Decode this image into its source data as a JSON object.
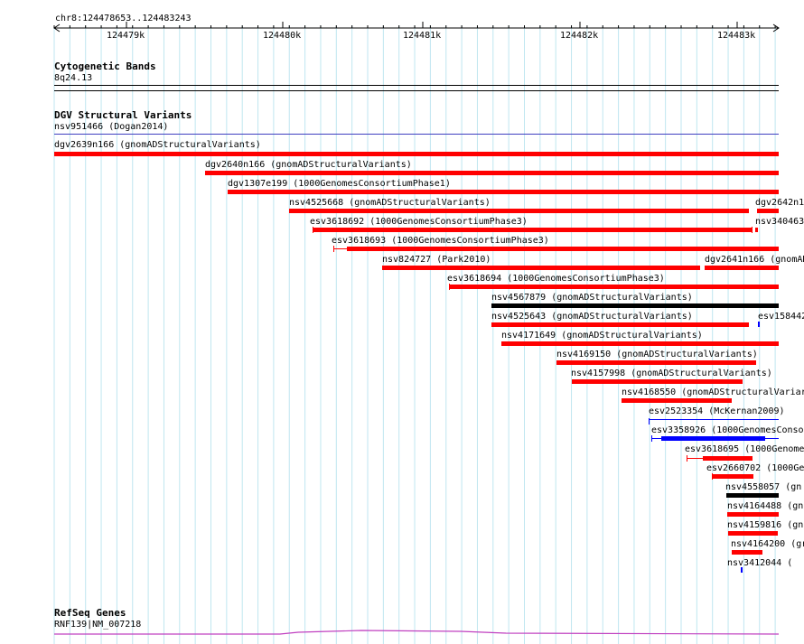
{
  "ruler": {
    "location": "chr8:124478653..124483243",
    "ticks": [
      "124479k",
      "124480k",
      "124481k",
      "124482k",
      "124483k"
    ]
  },
  "cytoband": {
    "title": "Cytogenetic Bands",
    "band": "8q24.13"
  },
  "dgv": {
    "title": "DGV Structural Variants",
    "first": "nsv951466 (Dogan2014)",
    "features": [
      {
        "label": "dgv2639n166 (gnomADStructuralVariants)",
        "color": "red"
      },
      {
        "label": "dgv2640n166 (gnomADStructuralVariants)",
        "color": "red"
      },
      {
        "label": "dgv1307e199 (1000GenomesConsortiumPhase1)",
        "color": "red"
      },
      {
        "label": "nsv4525668 (gnomADStructuralVariants)",
        "color": "red"
      },
      {
        "label": "dgv2642n1",
        "color": "red"
      },
      {
        "label": "esv3618692 (1000GenomesConsortiumPhase3)",
        "color": "red"
      },
      {
        "label": "nsv340463",
        "color": "red"
      },
      {
        "label": "esv3618693 (1000GenomesConsortiumPhase3)",
        "color": "red"
      },
      {
        "label": "nsv824727 (Park2010)",
        "color": "red"
      },
      {
        "label": "dgv2641n166 (gnomAD",
        "color": "red"
      },
      {
        "label": "esv3618694 (1000GenomesConsortiumPhase3)",
        "color": "red"
      },
      {
        "label": "nsv4567879 (gnomADStructuralVariants)",
        "color": "black"
      },
      {
        "label": "nsv4525643 (gnomADStructuralVariants)",
        "color": "red"
      },
      {
        "label": "esv158442",
        "color": "blue"
      },
      {
        "label": "nsv4171649 (gnomADStructuralVariants)",
        "color": "red"
      },
      {
        "label": "nsv4169150 (gnomADStructuralVariants)",
        "color": "red"
      },
      {
        "label": "nsv4157998 (gnomADStructuralVariants)",
        "color": "red"
      },
      {
        "label": "nsv4168550 (gnomADStructuralVariar",
        "color": "red"
      },
      {
        "label": "esv2523354 (McKernan2009)",
        "color": "blue"
      },
      {
        "label": "esv3358926 (1000GenomesConsor",
        "color": "blue"
      },
      {
        "label": "esv3618695 (1000Genome",
        "color": "red"
      },
      {
        "label": "esv2660702 (1000Ge",
        "color": "red"
      },
      {
        "label": "nsv4558057 (gn",
        "color": "black"
      },
      {
        "label": "nsv4164488 (gn",
        "color": "red"
      },
      {
        "label": "nsv4159816 (gn",
        "color": "red"
      },
      {
        "label": "nsv4164200 (gr",
        "color": "red"
      },
      {
        "label": "nsv3412044 (",
        "color": "blue"
      }
    ]
  },
  "refseq": {
    "title": "RefSeq Genes",
    "gene": "RNF139|NM_007218"
  },
  "colors": {
    "red": "#ff0000",
    "black": "#000000",
    "blue": "#0000ff",
    "grid": "#bfe6f0",
    "gene": "#c040c0",
    "dgv_line": "#4040c0"
  }
}
